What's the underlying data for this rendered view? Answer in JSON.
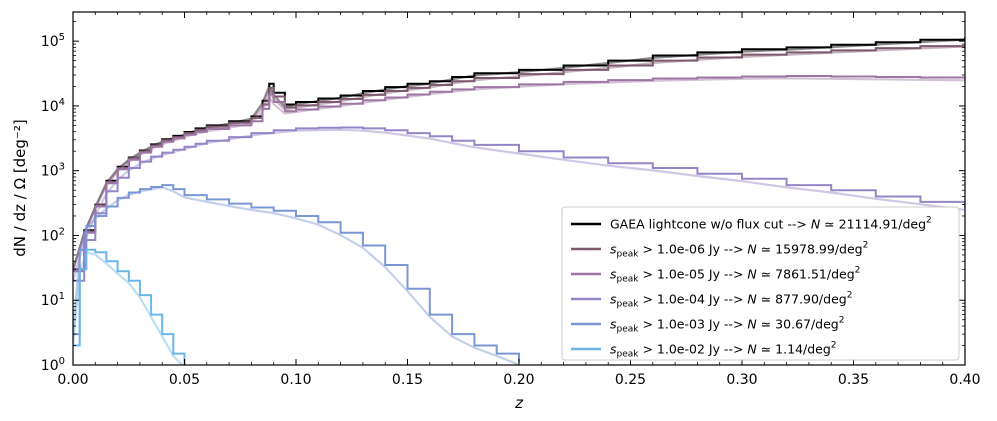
{
  "chart_data": {
    "type": "line",
    "xlabel": "z",
    "ylabel": "dN / dz / Ω [deg⁻²]",
    "xlim": [
      0.0,
      0.4
    ],
    "ylim_log10": [
      0,
      5.45
    ],
    "y_scale": "log",
    "x_ticks": [
      "0.00",
      "0.05",
      "0.10",
      "0.15",
      "0.20",
      "0.25",
      "0.30",
      "0.35",
      "0.40"
    ],
    "y_ticks": [
      {
        "base": "10",
        "exp": "0"
      },
      {
        "base": "10",
        "exp": "1"
      },
      {
        "base": "10",
        "exp": "2"
      },
      {
        "base": "10",
        "exp": "3"
      },
      {
        "base": "10",
        "exp": "4"
      },
      {
        "base": "10",
        "exp": "5"
      }
    ],
    "legend_position": "lower-right",
    "series": [
      {
        "name": "GAEA lightcone w/o flux cut",
        "label": {
          "pre": "GAEA lightcone w/o flux cut --> ",
          "n_sym": "N",
          "value": " ≃ 21114.91/deg",
          "exp": "2"
        },
        "color": "#000000",
        "kind": "histogram",
        "x": [
          0.0,
          0.005,
          0.01,
          0.015,
          0.02,
          0.025,
          0.03,
          0.035,
          0.04,
          0.045,
          0.05,
          0.055,
          0.06,
          0.07,
          0.08,
          0.085,
          0.088,
          0.09,
          0.095,
          0.1,
          0.11,
          0.12,
          0.13,
          0.14,
          0.15,
          0.16,
          0.17,
          0.18,
          0.2,
          0.22,
          0.24,
          0.26,
          0.28,
          0.3,
          0.32,
          0.34,
          0.36,
          0.38,
          0.4
        ],
        "y": [
          30,
          120,
          300,
          700,
          1150,
          1600,
          2050,
          2550,
          3050,
          3450,
          3950,
          4500,
          5000,
          5800,
          6900,
          12000,
          22000,
          16000,
          10500,
          11500,
          13000,
          14500,
          17000,
          19500,
          22000,
          24000,
          28000,
          32000,
          36000,
          42000,
          50000,
          60000,
          67000,
          75000,
          80000,
          88000,
          96000,
          105000,
          115000
        ]
      },
      {
        "name": "s_peak > 1.0e-06 Jy",
        "label": {
          "pre": "",
          "n_sym": "N",
          "value": " ≃ 15978.99/deg",
          "exp": "2",
          "cut": " > 1.0e-06 Jy --> "
        },
        "color": "#7e5a6e",
        "kind": "histogram",
        "x": [
          0.0,
          0.005,
          0.01,
          0.015,
          0.02,
          0.025,
          0.03,
          0.035,
          0.04,
          0.045,
          0.05,
          0.055,
          0.06,
          0.07,
          0.08,
          0.085,
          0.088,
          0.09,
          0.095,
          0.1,
          0.11,
          0.12,
          0.13,
          0.14,
          0.15,
          0.16,
          0.17,
          0.18,
          0.2,
          0.22,
          0.24,
          0.26,
          0.28,
          0.3,
          0.32,
          0.34,
          0.36,
          0.38,
          0.4
        ],
        "y": [
          30,
          115,
          290,
          670,
          1100,
          1550,
          1980,
          2450,
          2950,
          3300,
          3800,
          4300,
          4800,
          5500,
          6500,
          10500,
          19000,
          14000,
          9500,
          10200,
          11500,
          12800,
          14800,
          17000,
          19000,
          21000,
          24000,
          27000,
          31000,
          36000,
          42000,
          50000,
          56000,
          62000,
          67000,
          72000,
          78000,
          84000,
          90000
        ]
      },
      {
        "name": "s_peak > 1.0e-05 Jy",
        "label": {
          "pre": "",
          "n_sym": "N",
          "value": " ≃ 7861.51/deg",
          "exp": "2",
          "cut": " > 1.0e-05 Jy --> "
        },
        "color": "#9e76a3",
        "kind": "histogram",
        "x": [
          0.0,
          0.005,
          0.01,
          0.015,
          0.02,
          0.025,
          0.03,
          0.035,
          0.04,
          0.045,
          0.05,
          0.055,
          0.06,
          0.07,
          0.08,
          0.085,
          0.088,
          0.09,
          0.095,
          0.1,
          0.11,
          0.12,
          0.13,
          0.14,
          0.15,
          0.16,
          0.17,
          0.18,
          0.2,
          0.22,
          0.24,
          0.26,
          0.28,
          0.3,
          0.32,
          0.34,
          0.36,
          0.38,
          0.4
        ],
        "y": [
          28,
          110,
          280,
          640,
          1050,
          1480,
          1900,
          2350,
          2800,
          3150,
          3600,
          4000,
          4400,
          5000,
          5800,
          9000,
          15000,
          11500,
          8300,
          8800,
          9800,
          10800,
          12200,
          13500,
          15000,
          16500,
          18000,
          19500,
          21500,
          23500,
          25000,
          26500,
          27500,
          28500,
          29000,
          28500,
          28000,
          27500,
          27000
        ]
      },
      {
        "name": "s_peak > 1.0e-04 Jy",
        "label": {
          "pre": "",
          "n_sym": "N",
          "value": " ≃ 877.90/deg",
          "exp": "2",
          "cut": " > 1.0e-04 Jy --> "
        },
        "color": "#9585c6",
        "kind": "histogram",
        "x": [
          0.0,
          0.005,
          0.01,
          0.015,
          0.02,
          0.025,
          0.03,
          0.035,
          0.04,
          0.045,
          0.05,
          0.055,
          0.06,
          0.07,
          0.08,
          0.09,
          0.1,
          0.11,
          0.12,
          0.13,
          0.14,
          0.15,
          0.16,
          0.17,
          0.18,
          0.2,
          0.22,
          0.24,
          0.26,
          0.28,
          0.3,
          0.32,
          0.34,
          0.36,
          0.38,
          0.4
        ],
        "y": [
          20,
          85,
          220,
          480,
          780,
          1100,
          1380,
          1650,
          1900,
          2100,
          2350,
          2600,
          2900,
          3300,
          3800,
          4200,
          4500,
          4600,
          4650,
          4500,
          4200,
          3800,
          3400,
          2900,
          2500,
          2000,
          1600,
          1300,
          1100,
          900,
          750,
          600,
          500,
          400,
          330,
          270
        ]
      },
      {
        "name": "s_peak > 1.0e-03 Jy",
        "label": {
          "pre": "",
          "n_sym": "N",
          "value": " ≃ 30.67/deg",
          "exp": "2",
          "cut": " > 1.0e-03 Jy --> "
        },
        "color": "#7b96d4",
        "kind": "histogram",
        "x": [
          0.0,
          0.003,
          0.006,
          0.01,
          0.015,
          0.02,
          0.025,
          0.03,
          0.035,
          0.04,
          0.045,
          0.05,
          0.06,
          0.07,
          0.08,
          0.09,
          0.1,
          0.11,
          0.12,
          0.13,
          0.14,
          0.15,
          0.16,
          0.17,
          0.18,
          0.19,
          0.2
        ],
        "y": [
          3,
          60,
          140,
          200,
          280,
          380,
          460,
          520,
          560,
          600,
          520,
          420,
          360,
          310,
          270,
          240,
          200,
          160,
          110,
          70,
          35,
          15,
          6,
          3,
          2,
          1.5,
          1.1
        ]
      },
      {
        "name": "s_peak > 1.0e-02 Jy",
        "label": {
          "pre": "",
          "n_sym": "N",
          "value": " ≃ 1.14/deg",
          "exp": "2",
          "cut": " > 1.0e-02 Jy --> "
        },
        "color": "#6bb5e8",
        "kind": "histogram",
        "x": [
          0.0,
          0.003,
          0.006,
          0.01,
          0.015,
          0.02,
          0.025,
          0.03,
          0.035,
          0.04,
          0.045,
          0.05
        ],
        "y": [
          2,
          30,
          60,
          55,
          40,
          28,
          20,
          12,
          6,
          3,
          1.5,
          1
        ]
      }
    ]
  }
}
